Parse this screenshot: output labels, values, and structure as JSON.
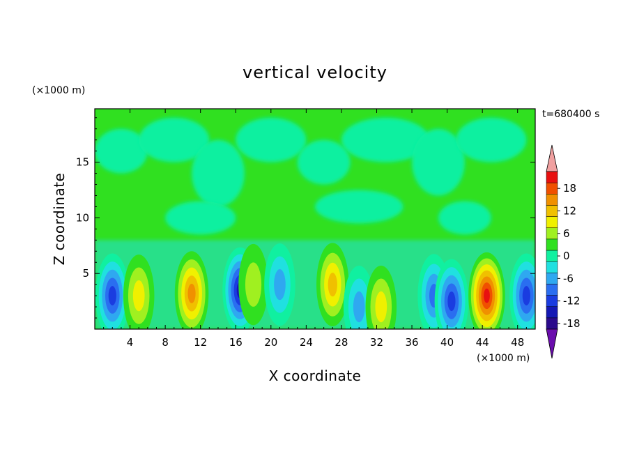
{
  "chart_data": {
    "type": "heatmap",
    "title": "vertical velocity",
    "xlabel": "X coordinate",
    "ylabel": "Z coordinate",
    "x_unit": "(×1000 m)",
    "y_unit": "(×1000 m)",
    "time_label": "t=680400 s",
    "xlim": [
      0,
      50
    ],
    "ylim": [
      0,
      19.8
    ],
    "x_ticks": [
      "4",
      "8",
      "12",
      "16",
      "20",
      "24",
      "28",
      "32",
      "36",
      "40",
      "44",
      "48"
    ],
    "y_ticks": [
      "5",
      "10",
      "15"
    ],
    "colorbar": {
      "levels": [
        -21,
        -18,
        -15,
        -12,
        -9,
        -6,
        -3,
        0,
        3,
        6,
        9,
        12,
        15,
        18,
        21
      ],
      "tick_labels": [
        "18",
        "12",
        "6",
        "0",
        "-6",
        "-12",
        "-18"
      ],
      "colors": [
        "#6a0dad",
        "#2b0a8c",
        "#1418b4",
        "#1a3ce0",
        "#2a6ef0",
        "#2fa8f0",
        "#20e0e0",
        "#10f0a0",
        "#30e020",
        "#a0f020",
        "#f0f000",
        "#f0c000",
        "#f09000",
        "#f05000",
        "#e81010",
        "#f0a0a0"
      ],
      "extend": "both"
    },
    "cells": [
      {
        "x": 2,
        "z": 3,
        "w": -12
      },
      {
        "x": 5,
        "z": 3,
        "w": 6
      },
      {
        "x": 11,
        "z": 3.2,
        "w": 12
      },
      {
        "x": 16.5,
        "z": 3.5,
        "w": -15
      },
      {
        "x": 18,
        "z": 4,
        "w": 3
      },
      {
        "x": 21,
        "z": 4,
        "w": -6
      },
      {
        "x": 27,
        "z": 4,
        "w": 9
      },
      {
        "x": 30,
        "z": 2,
        "w": -6
      },
      {
        "x": 32.5,
        "z": 2,
        "w": 6
      },
      {
        "x": 38.5,
        "z": 3,
        "w": -9
      },
      {
        "x": 40.5,
        "z": 2.5,
        "w": -12
      },
      {
        "x": 44.5,
        "z": 3,
        "w": 18
      },
      {
        "x": 49,
        "z": 3,
        "w": -12
      }
    ]
  }
}
